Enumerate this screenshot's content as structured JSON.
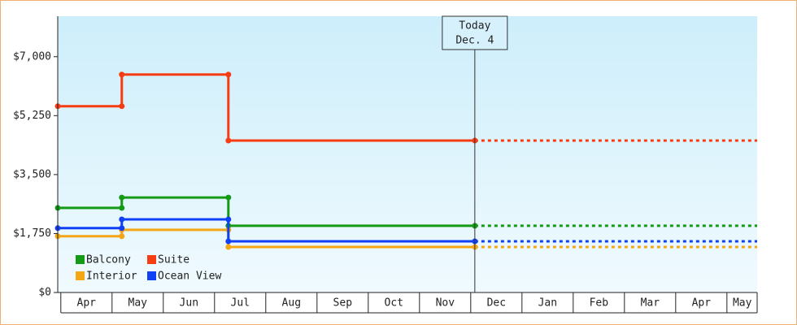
{
  "chart_data": {
    "type": "step-line",
    "xlim": [
      -0.06,
      13.59
    ],
    "xticks": [
      {
        "value": 0.5,
        "label": "Apr"
      },
      {
        "value": 1.5,
        "label": "May"
      },
      {
        "value": 2.5,
        "label": "Jun"
      },
      {
        "value": 3.5,
        "label": "Jul"
      },
      {
        "value": 4.5,
        "label": "Aug"
      },
      {
        "value": 5.5,
        "label": "Sep"
      },
      {
        "value": 6.5,
        "label": "Oct"
      },
      {
        "value": 7.5,
        "label": "Nov"
      },
      {
        "value": 8.5,
        "label": "Dec"
      },
      {
        "value": 9.5,
        "label": "Jan"
      },
      {
        "value": 10.5,
        "label": "Feb"
      },
      {
        "value": 11.5,
        "label": "Mar"
      },
      {
        "value": 12.5,
        "label": "Apr"
      },
      {
        "value": 13.3,
        "label": "May"
      }
    ],
    "ylim": [
      0,
      8200
    ],
    "yticks": [
      {
        "value": 0,
        "label": "$0"
      },
      {
        "value": 1750,
        "label": "$1,750"
      },
      {
        "value": 3500,
        "label": "$3,500"
      },
      {
        "value": 5250,
        "label": "$5,250"
      },
      {
        "value": 7000,
        "label": "$7,000"
      }
    ],
    "x": [
      -0.06,
      1.19,
      3.27,
      8.08
    ],
    "series": [
      {
        "name": "Balcony",
        "color": "#149a14",
        "values": [
          2510,
          2820,
          1980,
          1980
        ]
      },
      {
        "name": "Suite",
        "color": "#f53c12",
        "values": [
          5530,
          6470,
          4510,
          4510
        ]
      },
      {
        "name": "Interior",
        "color": "#f5a614",
        "values": [
          1670,
          1860,
          1350,
          1350
        ]
      },
      {
        "name": "Ocean View",
        "color": "#1040f5",
        "values": [
          1910,
          2170,
          1520,
          1520
        ]
      }
    ],
    "today": {
      "x": 8.08,
      "label": [
        "Today",
        "Dec. 4"
      ]
    }
  }
}
